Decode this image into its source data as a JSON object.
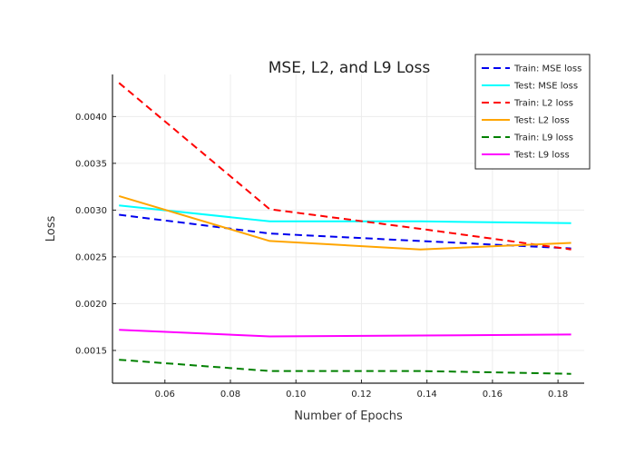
{
  "chart_data": {
    "type": "line",
    "title": "MSE, L2, and L9 Loss",
    "xlabel": "Number of Epochs",
    "ylabel": "Loss",
    "xlim": [
      0.044,
      0.188
    ],
    "ylim": [
      0.00115,
      0.00445
    ],
    "xticks": [
      0.06,
      0.08,
      0.1,
      0.12,
      0.14,
      0.16,
      0.18
    ],
    "xtick_labels": [
      "0.06",
      "0.08",
      "0.10",
      "0.12",
      "0.14",
      "0.16",
      "0.18"
    ],
    "yticks": [
      0.0015,
      0.002,
      0.0025,
      0.003,
      0.0035,
      0.004
    ],
    "ytick_labels": [
      "0.0015",
      "0.0020",
      "0.0025",
      "0.0030",
      "0.0035",
      "0.0040"
    ],
    "grid": true,
    "legend_position": "top-right",
    "x": [
      0.046,
      0.092,
      0.138,
      0.184
    ],
    "series": [
      {
        "name": "Train: MSE loss",
        "color": "#0000ee",
        "dash": true,
        "values": [
          0.00295,
          0.00275,
          0.00267,
          0.00259
        ]
      },
      {
        "name": "Test: MSE loss",
        "color": "#00ffff",
        "dash": false,
        "values": [
          0.00305,
          0.00288,
          0.00288,
          0.00286
        ]
      },
      {
        "name": "Train: L2 loss",
        "color": "#ff0000",
        "dash": true,
        "values": [
          0.00436,
          0.00301,
          0.0028,
          0.00258
        ]
      },
      {
        "name": "Test: L2 loss",
        "color": "#ffa500",
        "dash": false,
        "values": [
          0.00315,
          0.00267,
          0.00258,
          0.00265
        ]
      },
      {
        "name": "Train: L9 loss",
        "color": "#008000",
        "dash": true,
        "values": [
          0.0014,
          0.00128,
          0.00128,
          0.00125
        ]
      },
      {
        "name": "Test: L9 loss",
        "color": "#ff00ff",
        "dash": false,
        "values": [
          0.00172,
          0.00165,
          0.00166,
          0.00167
        ]
      }
    ]
  }
}
